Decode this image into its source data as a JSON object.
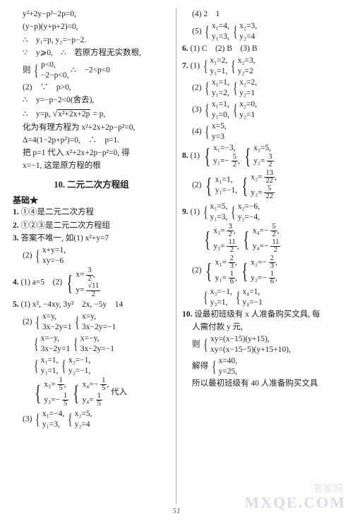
{
  "left": {
    "l1": "y²+2y−p²−2p=0,",
    "l2": "(y−p)(y+p+2)=0,",
    "l3": "∴　y₁=p, y₂=−p−2.",
    "l4": "∵　y⩾0,　∴　若原方程无实数根,",
    "l5a": "则",
    "l5b1": "p<0,",
    "l5b2": "−2−p<0,",
    "l5c": "∴　−2<p<0",
    "l6": "(2)　∵　p>0,",
    "l7": "∴　y=−p−2<0(舍去),",
    "l8_a": "∴　y=p, ",
    "l8_rad": "x²+2x+2p",
    "l8_b": " = p,",
    "l9": "化为有理方程为 x²+2x+2p−p²=0,",
    "l10": "Δ=4(1−2p+p²)=0,　∴　p=1.",
    "l11": "把 p=1 代入 x²+2x+2p−p²=0, 得",
    "l12": "x=−1, 这是原方程的根",
    "heading": "10. 二元二次方程组",
    "sub": "基础★",
    "b1": "①④是二元二次方程",
    "b2": "①②③是二元二次方程组",
    "b3": "答案不唯一, 如(1) x²+y=7",
    "b3_2a": "x+y=1,",
    "b3_2b": "xy=−6",
    "b4_a": "(1) a=5　(2)",
    "b4_x": "x= ",
    "b4_xv": "3",
    "b4_xd": "2",
    "b4_y": "y= ",
    "b4_yv": "√11",
    "b4_yd": "2",
    "b5_1": "(1) x², −4xy, 3y²　2x, −5y　14",
    "b5_2a1": "x=y,",
    "b5_2a2": "3x−2y=1",
    "b5_2b1": "x=y,",
    "b5_2b2": "3x−2y=−1",
    "b5_2c1": "x=−y,",
    "b5_2c2": "3x−2y=1",
    "b5_2d1": "x=−y,",
    "b5_2d2": "3x−2y=−1",
    "b5_r1a": "x₁=1,",
    "b5_r1b": "y₁=1,",
    "b5_r2a": "x₂=−1,",
    "b5_r2b": "y₂=−1,",
    "b5_r3a": "x₃= ",
    "b5_r3av": "1",
    "b5_r3ad": "5",
    "b5_r3ac": ",",
    "b5_r3b": "y₃=− ",
    "b5_r3bv": "1",
    "b5_r3bd": "5",
    "b5_r4a": "x₄=− ",
    "b5_r4av": "1",
    "b5_r4ad": "5",
    "b5_r4ac": ",",
    "b5_r4b": "y₄= ",
    "b5_r4bv": "1",
    "b5_r4bd": "5",
    "b5_dairu": "代入",
    "b5_3a1": "x₁=−4,",
    "b5_3a2": "y₁=3,",
    "b5_3b1": "x₂=5,",
    "b5_3b2": "y₂=4"
  },
  "right": {
    "r4": "(4) 2　1",
    "r5_1a": "x₁=4,",
    "r5_1b": "y₁=3,",
    "r5_2a": "x₂=3,",
    "r5_2b": "y₂=4",
    "r6": "(1) C　(2) B　(3) B",
    "r7_1_1a": "x₁=2,",
    "r7_1_1b": "y₁=1,",
    "r7_1_2a": "x₂=3,",
    "r7_1_2b": "y₂=2",
    "r7_2_1a": "x₁=1,",
    "r7_2_1b": "y₁=2,",
    "r7_2_2a": "x₂=2,",
    "r7_2_2b": "y₂=1",
    "r7_3_1a": "x₁=1,",
    "r7_3_1b": "y₁=0,",
    "r7_3_2a": "x₂=0,",
    "r7_3_2b": "y₂=1",
    "r7_4_1a": "x=5,",
    "r7_4_1b": "y=3",
    "r8_1_1a": "x₁=−3,",
    "r8_1_1b": "y₁=− ",
    "r8_1_1bv": "5",
    "r8_1_1bd": "2",
    "r8_1_1bc": ",",
    "r8_1_2a": "x₂=5,",
    "r8_1_2b": "y₂= ",
    "r8_1_2bv": "3",
    "r8_1_2bd": "2",
    "r8_2_1a": "x₁=1,",
    "r8_2_1b": "y₁=−1,",
    "r8_2_2a": "x₂= ",
    "r8_2_2av": "13",
    "r8_2_2ad": "22",
    "r8_2_2ac": ",",
    "r8_2_2b": "y₂= ",
    "r8_2_2bv": "5",
    "r8_2_2bd": "22",
    "r9_1_1a": "x₁=5,",
    "r9_1_1b": "y₁=3,",
    "r9_1_2a": "x₂=−6,",
    "r9_1_2b": "y₂=−4,",
    "r9_1_3a": "x₃= ",
    "r9_1_3av": "3",
    "r9_1_3ad": "2",
    "r9_1_3ac": ",",
    "r9_1_3b": "y₃= ",
    "r9_1_3bv": "11",
    "r9_1_3bd": "2",
    "r9_1_3bc": ",",
    "r9_1_4a": "x₄=− ",
    "r9_1_4av": "5",
    "r9_1_4ad": "2",
    "r9_1_4ac": ",",
    "r9_1_4b": "y₄=− ",
    "r9_1_4bv": "11",
    "r9_1_4bd": "2",
    "r9_2_1a": "x₁= ",
    "r9_2_1av": "2",
    "r9_2_1ad": "3",
    "r9_2_1ac": ",",
    "r9_2_1b": "y₁= ",
    "r9_2_1bv": "1",
    "r9_2_1bd": "6",
    "r9_2_1bc": ",",
    "r9_2_2a": "x₂=− ",
    "r9_2_2av": "2",
    "r9_2_2ad": "3",
    "r9_2_2ac": ",",
    "r9_2_2b": "y₂=− ",
    "r9_2_2bv": "1",
    "r9_2_2bd": "6",
    "r9_2_2bc": ",",
    "r9_2_3a": "x₃=−1,",
    "r9_2_3b": "y₃=1,",
    "r9_2_4a": "x₄=1,",
    "r9_2_4b": "y₄=−1",
    "r10_1": "设最初班级有 x 人准备购买文具, 每",
    "r10_2": "人需付款 y 元,",
    "r10_3": "则",
    "r10_3a": "xy=(x−15)(y+15),",
    "r10_3b": "xy=(x−15−5)(y+15+10),",
    "r10_4": "解得",
    "r10_4a": "x=40,",
    "r10_4b": "y=25,",
    "r10_5": "所以最初班级有 40 人准备购买文具"
  },
  "labels": {
    "n1": "1.",
    "n2": "2.",
    "n3": "3.",
    "n4": "4.",
    "n5": "5.",
    "n6": "6.",
    "n7": "7.",
    "n8": "8.",
    "n9": "9.",
    "n10": "10.",
    "p2": "(2)",
    "p3": "(3)",
    "p4": "(4)",
    "p5": "(5)",
    "p1": "(1)"
  },
  "page": "51",
  "wm1": "答案网",
  "wm2": "MXQE.COM"
}
